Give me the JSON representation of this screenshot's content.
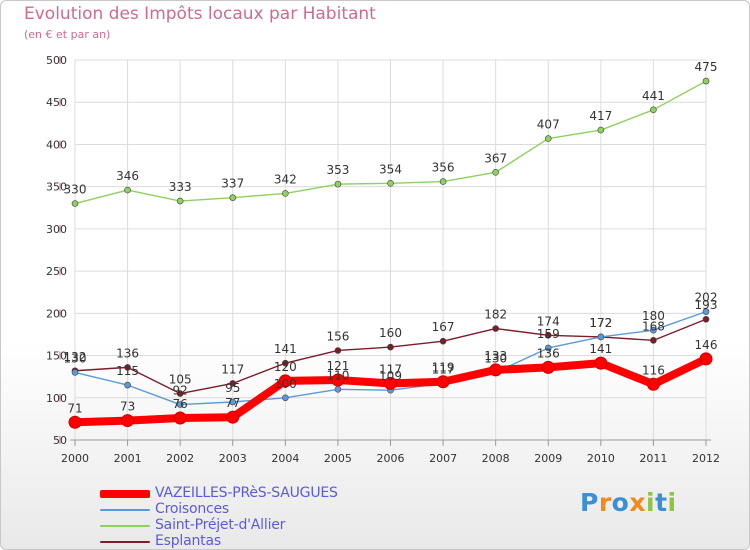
{
  "colors": {
    "title": "#d06a8f",
    "axis_labels": "#333333",
    "legend_text": "#5a5ae6",
    "tick_marks": "#d06a8f"
  },
  "chart_data": {
    "type": "line",
    "title": "Evolution des Impôts locaux par Habitant",
    "subtitle": "(en € et par an)",
    "xlabel": "",
    "ylabel": "",
    "x": [
      "2000",
      "2001",
      "2002",
      "2003",
      "2004",
      "2005",
      "2006",
      "2007",
      "2008",
      "2009",
      "2010",
      "2011",
      "2012"
    ],
    "yticks": [
      "50",
      "100",
      "150",
      "200",
      "250",
      "300",
      "350",
      "400",
      "450",
      "500"
    ],
    "ylim": [
      50,
      500
    ],
    "grid": true,
    "legend_position": "bottom-left",
    "series": [
      {
        "name": "VAZEILLES-PRèS-SAUGUES",
        "color": "#ff0000",
        "style": "thick",
        "values": [
          71,
          73,
          76,
          77,
          120,
          121,
          117,
          119,
          133,
          136,
          141,
          116,
          146
        ],
        "labels": [
          "71",
          "73",
          "76",
          "77",
          "120",
          "121",
          "117",
          "119",
          "133",
          "136",
          "141",
          "116",
          "146"
        ]
      },
      {
        "name": "Croisonces",
        "color": "#5b9bd5",
        "style": "thin",
        "values": [
          130,
          115,
          92,
          95,
          100,
          110,
          109,
          117,
          130,
          159,
          172,
          180,
          202
        ],
        "labels": [
          "130",
          "115",
          "92",
          "95",
          "100",
          "110",
          "109",
          "117",
          "130",
          "159",
          "172",
          "180",
          "202"
        ]
      },
      {
        "name": "Saint-Préjet-d'Allier",
        "color": "#8fd160",
        "style": "thin",
        "values": [
          330,
          346,
          333,
          337,
          342,
          353,
          354,
          356,
          367,
          407,
          417,
          441,
          475
        ],
        "labels": [
          "330",
          "346",
          "333",
          "337",
          "342",
          "353",
          "354",
          "356",
          "367",
          "407",
          "417",
          "441",
          "475"
        ]
      },
      {
        "name": "Esplantas",
        "color": "#7b1e2a",
        "style": "thin",
        "values": [
          132,
          136,
          105,
          117,
          141,
          156,
          160,
          167,
          182,
          174,
          172,
          168,
          193
        ],
        "labels": [
          "132",
          "136",
          "105",
          "117",
          "141",
          "156",
          "160",
          "167",
          "182",
          "174",
          "172",
          "168",
          "193"
        ]
      }
    ]
  },
  "legend": {
    "items": [
      {
        "label": "VAZEILLES-PRèS-SAUGUES",
        "color": "#ff0000"
      },
      {
        "label": "Croisonces",
        "color": "#5b9bd5"
      },
      {
        "label": "Saint-Préjet-d'Allier",
        "color": "#8fd160"
      },
      {
        "label": "Esplantas",
        "color": "#7b1e2a"
      }
    ]
  },
  "brand": {
    "letters": [
      "P",
      "r",
      "o",
      "x",
      "i",
      "t",
      "i"
    ],
    "colors": [
      "#3a8fd6",
      "#f08a1c",
      "#3a8fd6",
      "#f08a1c",
      "#8cc63f",
      "#3a8fd6",
      "#8cc63f"
    ]
  }
}
